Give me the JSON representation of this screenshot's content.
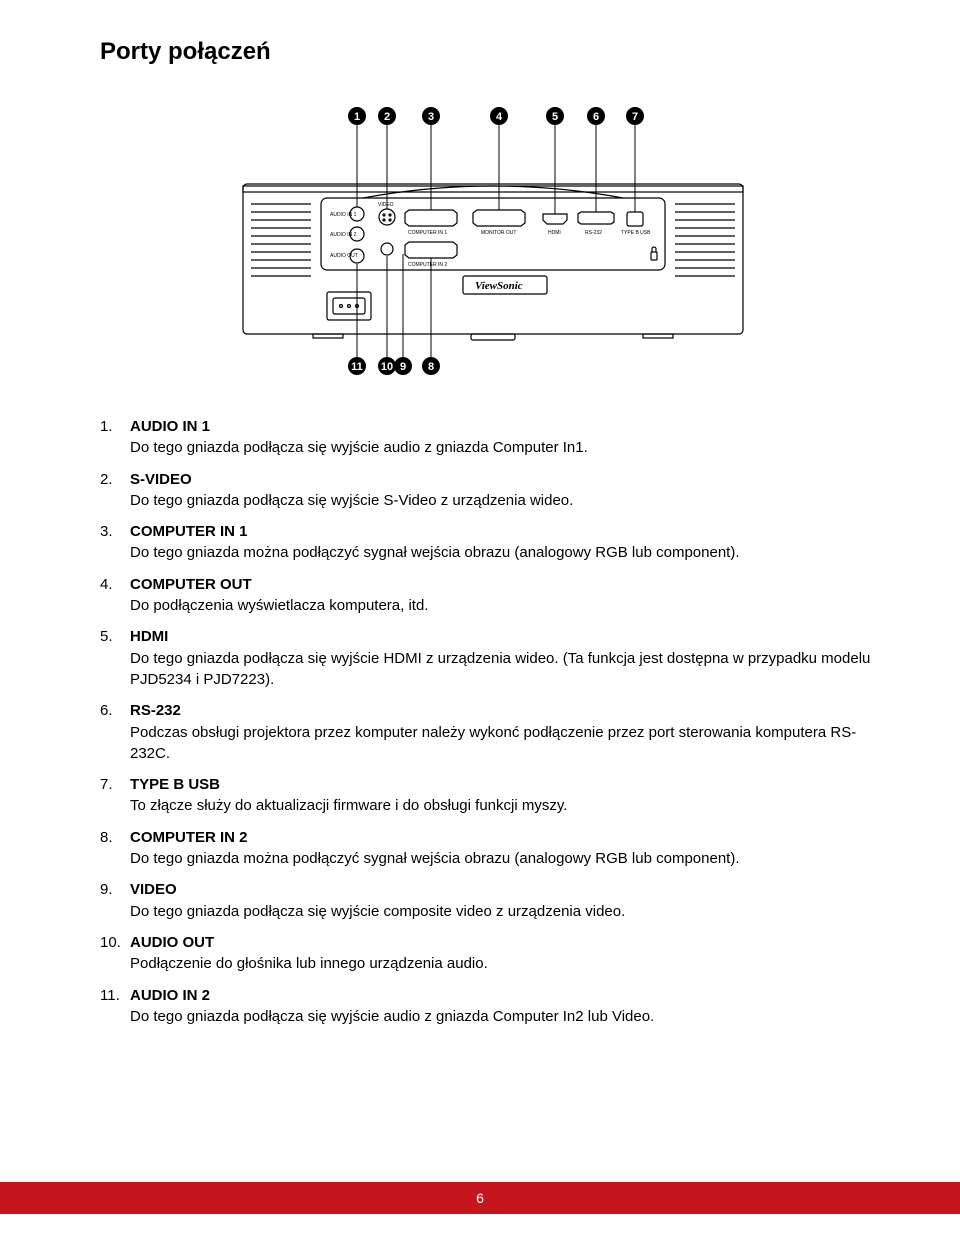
{
  "title": "Porty połączeń",
  "diagram": {
    "top_callouts": [
      1,
      2,
      3,
      4,
      5,
      6,
      7
    ],
    "bottom_callouts": [
      11,
      10,
      9,
      8
    ],
    "port_labels": {
      "audio_in_1": "AUDIO IN 1",
      "audio_in_2": "AUDIO IN 2",
      "audio_out": "AUDIO OUT",
      "video": "VIDEO",
      "computer_in_1": "COMPUTER IN 1",
      "computer_in_2": "COMPUTER IN 2",
      "monitor_out": "MONITOR OUT",
      "hdmi": "HDMI",
      "rs232": "RS-232",
      "type_b_usb": "TYPE B USB"
    },
    "brand": "ViewSonic",
    "colors": {
      "stroke": "#000000",
      "fill_bg": "#ffffff",
      "callout_fill": "#000000",
      "callout_text": "#ffffff"
    }
  },
  "items": [
    {
      "num": "1.",
      "label": "AUDIO IN 1",
      "desc": "Do tego gniazda podłącza się wyjście audio z gniazda Computer In1."
    },
    {
      "num": "2.",
      "label": "S-VIDEO",
      "desc": "Do tego gniazda podłącza się wyjście S-Video z urządzenia wideo."
    },
    {
      "num": "3.",
      "label": "COMPUTER IN 1",
      "desc": "Do tego gniazda można podłączyć sygnał wejścia obrazu (analogowy RGB lub component)."
    },
    {
      "num": "4.",
      "label": "COMPUTER OUT",
      "desc": "Do podłączenia wyświetlacza komputera, itd."
    },
    {
      "num": "5.",
      "label": "HDMI",
      "desc": "Do tego gniazda podłącza się wyjście HDMI z urządzenia wideo. (Ta funkcja jest dostępna w przypadku modelu PJD5234 i PJD7223)."
    },
    {
      "num": "6.",
      "label": "RS-232",
      "desc": "Podczas obsługi projektora przez komputer należy wykonć podłączenie przez port sterowania komputera RS-232C."
    },
    {
      "num": "7.",
      "label": "TYPE B USB",
      "desc": "To złącze służy do aktualizacji firmware i do obsługi funkcji myszy."
    },
    {
      "num": "8.",
      "label": "COMPUTER IN 2",
      "desc": "Do tego gniazda można podłączyć sygnał wejścia obrazu (analogowy RGB lub component)."
    },
    {
      "num": "9.",
      "label": "VIDEO",
      "desc": "Do tego gniazda podłącza się wyjście composite video z urządzenia video."
    },
    {
      "num": "10.",
      "label": "AUDIO OUT",
      "desc": "Podłączenie do głośnika lub innego urządzenia audio."
    },
    {
      "num": "11.",
      "label": "AUDIO IN 2",
      "desc": "Do tego gniazda podłącza się wyjście audio z gniazda Computer In2 lub Video."
    }
  ],
  "page": "6",
  "footer_bg": "#c4161c",
  "footer_text_color": "#ffffff"
}
